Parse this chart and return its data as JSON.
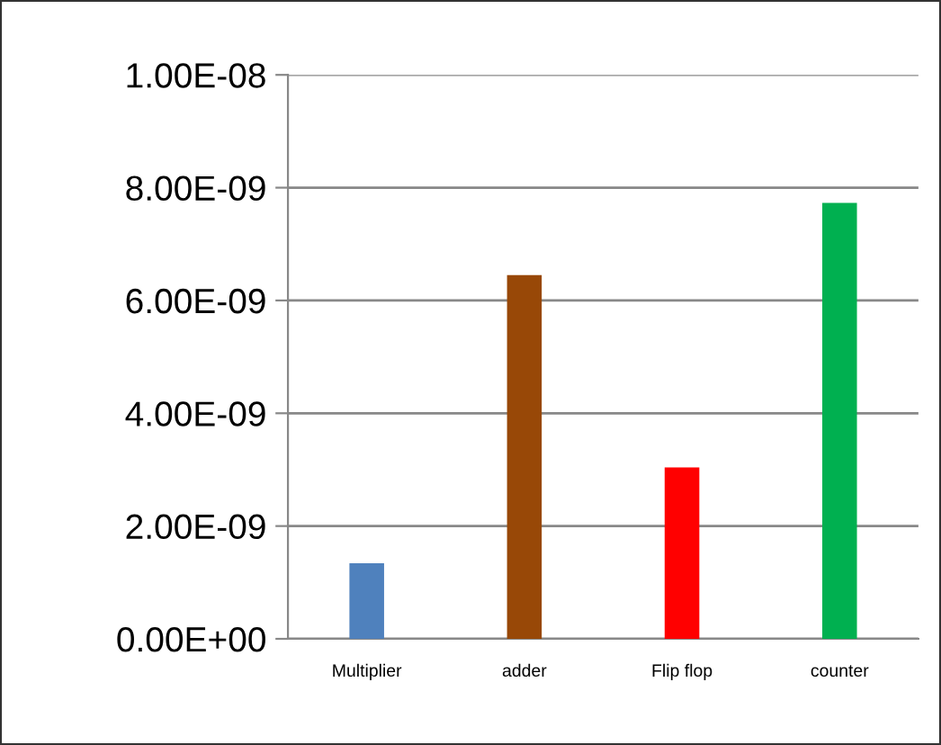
{
  "chart_data": {
    "type": "bar",
    "categories": [
      "Multiplier",
      "adder",
      "Flip flop",
      "counter"
    ],
    "values": [
      1.34e-09,
      6.45e-09,
      3.04e-09,
      7.73e-09
    ],
    "colors": [
      "#4f81bd",
      "#984807",
      "#ff0000",
      "#00b050"
    ],
    "ylim": [
      0,
      1e-08
    ],
    "yticks": [
      {
        "value": 0,
        "label": "0.00E+00"
      },
      {
        "value": 2e-09,
        "label": "2.00E-09"
      },
      {
        "value": 4e-09,
        "label": "4.00E-09"
      },
      {
        "value": 6e-09,
        "label": "6.00E-09"
      },
      {
        "value": 8e-09,
        "label": "8.00E-09"
      },
      {
        "value": 1e-08,
        "label": "1.00E-08"
      }
    ],
    "grid": "y",
    "legend": false
  }
}
